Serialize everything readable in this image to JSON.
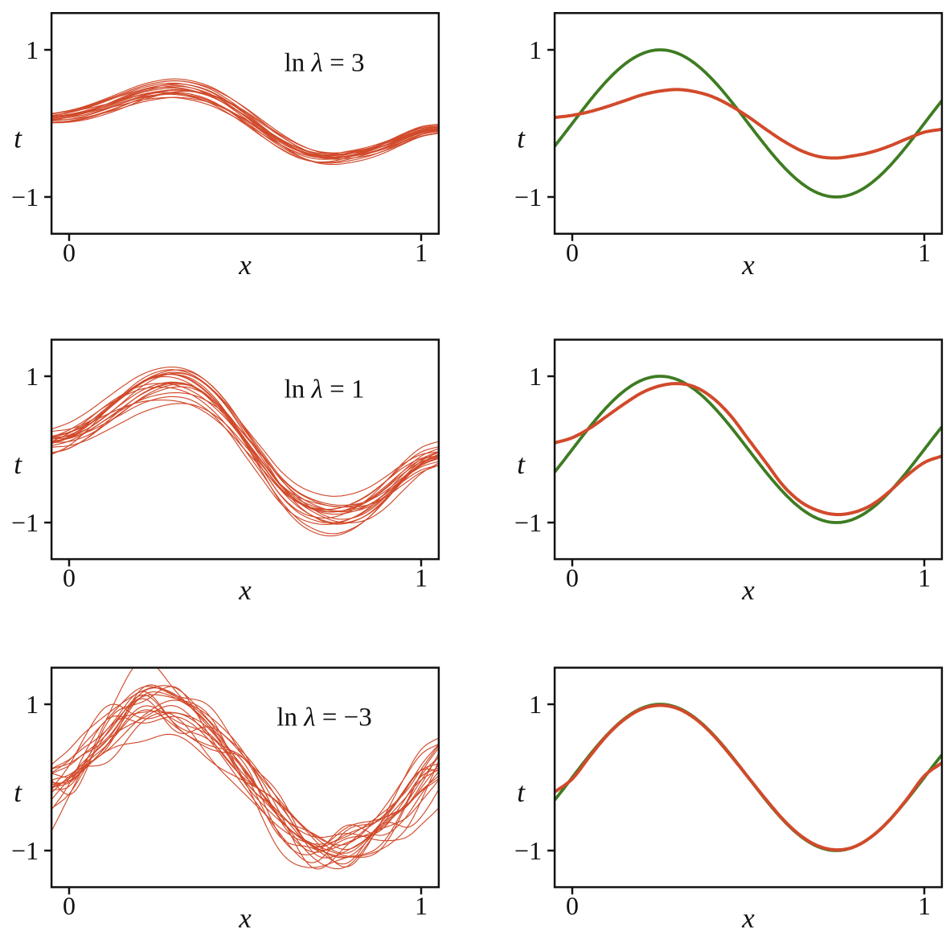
{
  "colors": {
    "fit_red": "#d14a2b",
    "truth_green": "#3e7c22",
    "axis_black": "#111111",
    "background": "#ffffff"
  },
  "chart_data": {
    "type": "line",
    "grid": "3 rows x 2 columns",
    "x_label": "x",
    "y_label": "t",
    "x_ticks": {
      "values": [
        0,
        1
      ],
      "labels": [
        "0",
        "1"
      ]
    },
    "y_ticks": {
      "values": [
        1,
        -1
      ],
      "labels": [
        "1",
        "−1"
      ]
    },
    "x_range": [
      -0.05,
      1.05
    ],
    "y_range": [
      -1.5,
      1.5
    ],
    "truth_function": "sin(2πx)",
    "legend": "left column: 20 regularized fits from individual data sets; right column: true function sin(2πx) (green) and average fit (red)",
    "sample_x": [
      -0.05,
      0,
      0.05,
      0.1,
      0.15,
      0.2,
      0.25,
      0.3,
      0.35,
      0.4,
      0.45,
      0.5,
      0.55,
      0.6,
      0.65,
      0.7,
      0.75,
      0.8,
      0.85,
      0.9,
      0.95,
      1,
      1.05
    ],
    "rows": [
      {
        "ln_lambda": 3,
        "annotation": "ln λ = 3",
        "mean_fit_t": [
          0.08,
          0.11,
          0.16,
          0.23,
          0.31,
          0.39,
          0.44,
          0.46,
          0.43,
          0.36,
          0.24,
          0.09,
          -0.08,
          -0.24,
          -0.37,
          -0.45,
          -0.47,
          -0.44,
          -0.39,
          -0.31,
          -0.21,
          -0.12,
          -0.08
        ],
        "left_panel": {
          "content": "ensemble of fitted curves",
          "n_curves": 20,
          "seed": 12,
          "bumps": 6,
          "bump_width": 0.16,
          "sigma": 0.055,
          "edge_envelope": 0.5
        },
        "right_panel": {
          "series": [
            {
              "name": "sin(2πx)",
              "color": "truth_green"
            },
            {
              "name": "average fit",
              "color": "fit_red"
            }
          ]
        }
      },
      {
        "ln_lambda": 1,
        "annotation": "ln λ = 1",
        "mean_fit_t": [
          0.09,
          0.16,
          0.29,
          0.46,
          0.63,
          0.78,
          0.87,
          0.9,
          0.85,
          0.7,
          0.46,
          0.14,
          -0.18,
          -0.5,
          -0.72,
          -0.84,
          -0.89,
          -0.86,
          -0.76,
          -0.58,
          -0.36,
          -0.18,
          -0.09
        ],
        "left_panel": {
          "content": "ensemble of fitted curves",
          "n_curves": 20,
          "seed": 5,
          "bumps": 8,
          "bump_width": 0.12,
          "sigma": 0.115,
          "edge_envelope": 0.85
        },
        "right_panel": {
          "series": [
            {
              "name": "sin(2πx)",
              "color": "truth_green"
            },
            {
              "name": "average fit",
              "color": "fit_red"
            }
          ]
        }
      },
      {
        "ln_lambda": -3,
        "annotation": "ln λ = −3",
        "mean_fit_t": [
          -0.2,
          -0.02,
          0.29,
          0.58,
          0.8,
          0.94,
          0.985,
          0.94,
          0.8,
          0.58,
          0.3,
          0,
          -0.3,
          -0.58,
          -0.8,
          -0.94,
          -0.99,
          -0.95,
          -0.81,
          -0.59,
          -0.3,
          0.02,
          0.2
        ],
        "left_panel": {
          "content": "ensemble of fitted curves",
          "n_curves": 20,
          "seed": 9,
          "bumps": 13,
          "bump_width": 0.055,
          "sigma": 0.19,
          "edge_envelope": 1.25
        },
        "right_panel": {
          "series": [
            {
              "name": "sin(2πx)",
              "color": "truth_green"
            },
            {
              "name": "average fit",
              "color": "fit_red"
            }
          ]
        }
      }
    ]
  }
}
